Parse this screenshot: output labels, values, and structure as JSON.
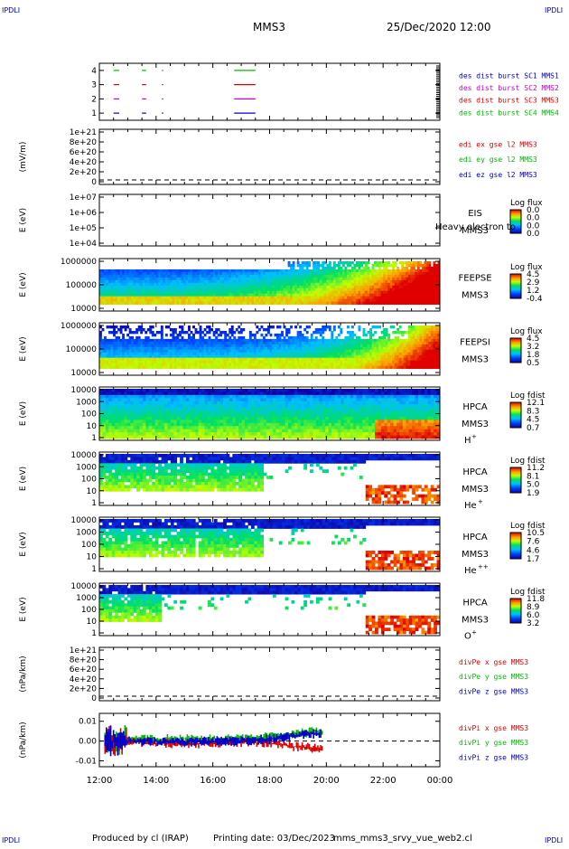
{
  "corner_labels": {
    "top_left": "IPDLI",
    "top_right": "IPDLI",
    "bottom_left": "IPDLI",
    "bottom_right": "IPDLI"
  },
  "header": {
    "spacecraft": "MMS3",
    "datetime": "25/Dec/2020 12:00"
  },
  "footer": {
    "produced_by": "Produced by cl (IRAP)",
    "printing_date": "Printing date: 03/Dec/2023",
    "script_name": "mms_mms3_srvy_vue_web2.cl"
  },
  "x_axis": {
    "ticks": [
      "12:00",
      "14:00",
      "16:00",
      "18:00",
      "20:00",
      "22:00",
      "00:00"
    ],
    "range_hours": [
      12,
      24
    ]
  },
  "colors": {
    "red": "#dd0000",
    "green": "#00bb00",
    "blue": "#0000cc",
    "magenta": "#cc00cc"
  },
  "chart_data": [
    {
      "type": "line",
      "panel": "burst",
      "ylabel": "",
      "y_ticks": [
        "4",
        "3",
        "2",
        "1"
      ],
      "ylim": [
        0.5,
        4.5
      ],
      "legend": [
        {
          "text": "des dist burst SC1 MMS1",
          "color": "#0000cc"
        },
        {
          "text": "des dist burst SC2 MMS2",
          "color": "#cc00cc"
        },
        {
          "text": "des dist burst SC3 MMS3",
          "color": "#dd0000"
        },
        {
          "text": "des dist burst SC4 MMS4",
          "color": "#00bb00"
        }
      ],
      "segments": [
        {
          "level": 4,
          "start": 12.5,
          "end": 12.7,
          "color": "#00bb00"
        },
        {
          "level": 4,
          "start": 13.5,
          "end": 13.65,
          "color": "#00bb00"
        },
        {
          "level": 4,
          "start": 14.2,
          "end": 14.25,
          "color": "#00bb00"
        },
        {
          "level": 4,
          "start": 16.75,
          "end": 17.5,
          "color": "#00bb00"
        },
        {
          "level": 3,
          "start": 12.5,
          "end": 12.7,
          "color": "#dd0000"
        },
        {
          "level": 3,
          "start": 13.5,
          "end": 13.65,
          "color": "#dd0000"
        },
        {
          "level": 3,
          "start": 14.2,
          "end": 14.25,
          "color": "#dd0000"
        },
        {
          "level": 3,
          "start": 16.75,
          "end": 17.5,
          "color": "#dd0000"
        },
        {
          "level": 2,
          "start": 12.5,
          "end": 12.7,
          "color": "#cc00cc"
        },
        {
          "level": 2,
          "start": 13.5,
          "end": 13.65,
          "color": "#cc00cc"
        },
        {
          "level": 2,
          "start": 14.2,
          "end": 14.25,
          "color": "#cc00cc"
        },
        {
          "level": 2,
          "start": 16.75,
          "end": 17.5,
          "color": "#cc00cc"
        },
        {
          "level": 1,
          "start": 12.5,
          "end": 12.7,
          "color": "#0000cc"
        },
        {
          "level": 1,
          "start": 13.5,
          "end": 13.65,
          "color": "#0000cc"
        },
        {
          "level": 1,
          "start": 14.2,
          "end": 14.25,
          "color": "#0000cc"
        },
        {
          "level": 1,
          "start": 16.75,
          "end": 17.5,
          "color": "#0000cc"
        }
      ]
    },
    {
      "type": "line",
      "panel": "edi",
      "ylabel": "(mV/m)",
      "y_ticks": [
        "1e+21",
        "8e+20",
        "6e+20",
        "4e+20",
        "2e+20",
        "0"
      ],
      "legend": [
        {
          "text": "edi ex gse l2 MMS3",
          "color": "#dd0000"
        },
        {
          "text": "edi ey gse l2 MMS3",
          "color": "#00bb00"
        },
        {
          "text": "edi ez gse l2 MMS3",
          "color": "#0000cc"
        }
      ],
      "zero_line": true
    },
    {
      "type": "heatmap",
      "panel": "eis",
      "ylabel": "E (eV)",
      "y_ticks": [
        "1e+07",
        "1e+06",
        "1e+05",
        "1e+04"
      ],
      "instrument": [
        "EIS",
        "MMS3"
      ],
      "overlay_text": "Heavy electron to",
      "colorbar": {
        "label": "Log flux",
        "ticks": [
          "0.0",
          "0.0",
          "0.0",
          "0.0"
        ]
      }
    },
    {
      "type": "heatmap",
      "panel": "feepse",
      "ylabel": "E (eV)",
      "y_ticks": [
        "1000000",
        "100000",
        "10000"
      ],
      "instrument": [
        "FEEPSE",
        "MMS3"
      ],
      "colorbar": {
        "label": "Log flux",
        "ticks": [
          "4.5",
          "2.9",
          "1.2",
          "-0.4"
        ]
      }
    },
    {
      "type": "heatmap",
      "panel": "feepsi",
      "ylabel": "E (eV)",
      "y_ticks": [
        "1000000",
        "100000",
        "10000"
      ],
      "instrument": [
        "FEEPSI",
        "MMS3"
      ],
      "colorbar": {
        "label": "Log flux",
        "ticks": [
          "4.5",
          "3.2",
          "1.8",
          "0.5"
        ]
      }
    },
    {
      "type": "heatmap",
      "panel": "hpca_h",
      "ylabel": "E (eV)",
      "y_ticks": [
        "10000",
        "1000",
        "100",
        "10",
        "1"
      ],
      "instrument": [
        "HPCA",
        "MMS3"
      ],
      "species": "H",
      "species_charge": "+",
      "colorbar": {
        "label": "Log fdist",
        "ticks": [
          "12.1",
          "8.3",
          "4.5",
          "0.7"
        ]
      }
    },
    {
      "type": "heatmap",
      "panel": "hpca_he1",
      "ylabel": "E (eV)",
      "y_ticks": [
        "10000",
        "1000",
        "100",
        "10",
        "1"
      ],
      "instrument": [
        "HPCA",
        "MMS3"
      ],
      "species": "He",
      "species_charge": "+",
      "colorbar": {
        "label": "Log fdist",
        "ticks": [
          "11.2",
          "8.1",
          "5.0",
          "1.9"
        ]
      }
    },
    {
      "type": "heatmap",
      "panel": "hpca_he2",
      "ylabel": "E (eV)",
      "y_ticks": [
        "10000",
        "1000",
        "100",
        "10",
        "1"
      ],
      "instrument": [
        "HPCA",
        "MMS3"
      ],
      "species": "He",
      "species_charge": "++",
      "colorbar": {
        "label": "Log fdist",
        "ticks": [
          "10.5",
          "7.6",
          "4.6",
          "1.7"
        ]
      }
    },
    {
      "type": "heatmap",
      "panel": "hpca_o",
      "ylabel": "E (eV)",
      "y_ticks": [
        "10000",
        "1000",
        "100",
        "10",
        "1"
      ],
      "instrument": [
        "HPCA",
        "MMS3"
      ],
      "species": "O",
      "species_charge": "+",
      "colorbar": {
        "label": "Log fdist",
        "ticks": [
          "11.8",
          "8.9",
          "6.0",
          "3.2"
        ]
      }
    },
    {
      "type": "line",
      "panel": "divpe",
      "ylabel": "(nPa/km)",
      "y_ticks": [
        "1e+21",
        "8e+20",
        "6e+20",
        "4e+20",
        "2e+20",
        "0"
      ],
      "legend": [
        {
          "text": "divPe x gse MMS3",
          "color": "#dd0000"
        },
        {
          "text": "divPe y gse MMS3",
          "color": "#00bb00"
        },
        {
          "text": "divPe z gse MMS3",
          "color": "#0000cc"
        }
      ],
      "zero_line": true
    },
    {
      "type": "line",
      "panel": "divpi",
      "ylabel": "(nPa/km)",
      "y_ticks": [
        "0.01",
        "0.00",
        "-0.01"
      ],
      "ylim": [
        -0.013,
        0.014
      ],
      "legend": [
        {
          "text": "divPi x gse MMS3",
          "color": "#dd0000"
        },
        {
          "text": "divPi y gse MMS3",
          "color": "#00bb00"
        },
        {
          "text": "divPi z gse MMS3",
          "color": "#0000cc"
        }
      ],
      "series": [
        {
          "color": "#00bb00",
          "x": [
            12.2,
            13,
            14,
            15,
            16,
            17,
            18,
            19,
            19.9
          ],
          "y": [
            0.0,
            0.0005,
            0.001,
            0.001,
            0.0008,
            0.0012,
            0.002,
            0.004,
            0.005
          ]
        },
        {
          "color": "#dd0000",
          "x": [
            12.2,
            13,
            14,
            15,
            16,
            17,
            18,
            19,
            19.9
          ],
          "y": [
            0.0,
            -0.0005,
            -0.001,
            -0.0015,
            -0.001,
            -0.0005,
            -0.001,
            -0.003,
            -0.004
          ]
        },
        {
          "color": "#0000cc",
          "x": [
            12.2,
            13,
            14,
            15,
            16,
            17,
            18,
            19,
            19.9
          ],
          "y": [
            0.0,
            0.0,
            0.0,
            -0.0005,
            0.0,
            0.0,
            0.001,
            0.003,
            0.004
          ]
        }
      ],
      "zero_line": true
    }
  ]
}
